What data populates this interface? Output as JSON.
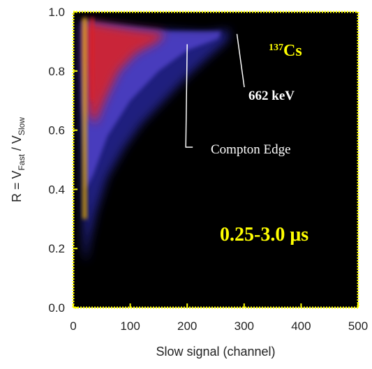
{
  "chart_data": {
    "type": "heatmap",
    "title": "",
    "xlabel": "Slow signal (channel)",
    "ylabel": {
      "prefix": "R = V",
      "sub1": "Fast",
      "middle": " / V",
      "sub2": "Slow"
    },
    "xlim": [
      0,
      500
    ],
    "ylim": [
      0.0,
      1.0
    ],
    "x_ticks": [
      0,
      100,
      200,
      300,
      400,
      500
    ],
    "x_tick_labels": [
      "0",
      "100",
      "200",
      "300",
      "400",
      "500"
    ],
    "y_ticks": [
      0.0,
      0.2,
      0.4,
      0.6,
      0.8,
      1.0
    ],
    "y_tick_labels": [
      "0.0",
      "0.2",
      "0.4",
      "0.6",
      "0.8",
      "1.0"
    ],
    "grid": false,
    "background_color": "#000000",
    "frame_color": "#ffff00",
    "colors": {
      "low": "#2a2aa8",
      "mid": "#5a4ad8",
      "high": "#e02020",
      "peak": "#ffc000"
    },
    "annotations": {
      "isotope": {
        "mass_number": "137",
        "element": "Cs",
        "color": "#ffff00"
      },
      "photopeak": {
        "label": "662 keV",
        "x": 280,
        "y": 0.93
      },
      "compton_edge": {
        "label": "Compton Edge",
        "x": 200,
        "y": 0.9
      },
      "time_window": {
        "label": "0.25-3.0 μs",
        "color": "#ffff00"
      }
    }
  }
}
